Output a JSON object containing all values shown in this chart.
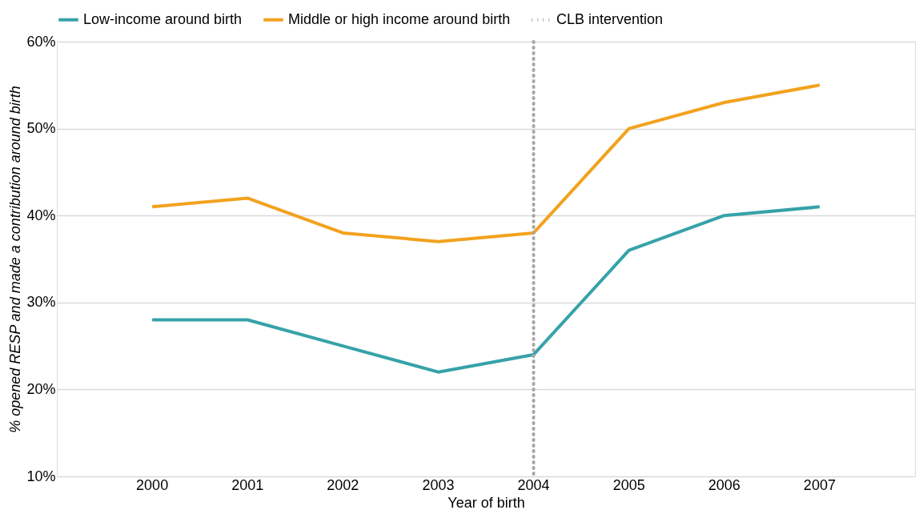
{
  "chart_data": {
    "type": "line",
    "xlabel": "Year of birth",
    "ylabel": "% opened RESP and made a contribution around birth",
    "categories": [
      "2000",
      "2001",
      "2002",
      "2003",
      "2004",
      "2005",
      "2006",
      "2007"
    ],
    "series": [
      {
        "name": "Low-income around birth",
        "color": "#36a2a9",
        "values": [
          28,
          28,
          25,
          22,
          24,
          36,
          40,
          41
        ]
      },
      {
        "name": "Middle or high income around birth",
        "color": "#f2a21e",
        "values": [
          41,
          42,
          38,
          37,
          38,
          50,
          53,
          55
        ]
      }
    ],
    "ylim": [
      10,
      60
    ],
    "yticks": [
      {
        "value": 10,
        "label": "10%"
      },
      {
        "value": 20,
        "label": "20%"
      },
      {
        "value": 30,
        "label": "30%"
      },
      {
        "value": 40,
        "label": "40%"
      },
      {
        "value": 50,
        "label": "50%"
      },
      {
        "value": 60,
        "label": "60%"
      }
    ],
    "ref_lines": [
      {
        "axis": "x",
        "value": "2004",
        "label": "CLB intervention",
        "color": "#a6a6a6",
        "line_style": "dotted"
      }
    ],
    "grid": "y",
    "legend": "top",
    "marker": "none",
    "line_style": "solid"
  }
}
